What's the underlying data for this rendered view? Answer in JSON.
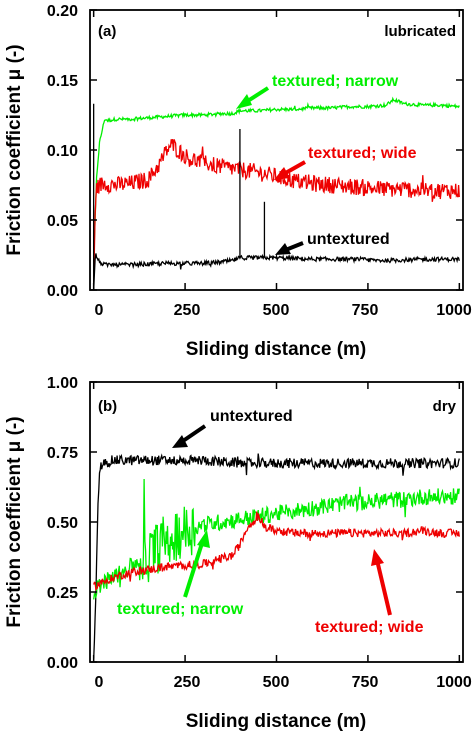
{
  "chart_data": [
    {
      "type": "line",
      "panel_label": "(a)",
      "condition": "lubricated",
      "xlabel": "Sliding distance (m)",
      "ylabel": "Friction coefficient μ (-)",
      "xlim": [
        -10,
        1010
      ],
      "ylim": [
        0,
        0.2
      ],
      "xticks": [
        "0",
        "250",
        "500",
        "750",
        "1000"
      ],
      "xtick_values": [
        0,
        250,
        500,
        750,
        1000
      ],
      "yticks": [
        "0.00",
        "0.05",
        "0.10",
        "0.15",
        "0.20"
      ],
      "ytick_values": [
        0,
        0.05,
        0.1,
        0.15,
        0.2
      ],
      "grid": false,
      "series": [
        {
          "name": "textured; narrow",
          "color": "#00ee00",
          "x": [
            0,
            8,
            16,
            24,
            30,
            40,
            60,
            100,
            150,
            200,
            250,
            300,
            350,
            380,
            400,
            450,
            500,
            550,
            600,
            650,
            700,
            750,
            800,
            820,
            850,
            900,
            950,
            1000
          ],
          "y": [
            0.02,
            0.08,
            0.105,
            0.115,
            0.122,
            0.121,
            0.122,
            0.122,
            0.123,
            0.124,
            0.125,
            0.125,
            0.126,
            0.126,
            0.128,
            0.128,
            0.129,
            0.129,
            0.13,
            0.13,
            0.131,
            0.131,
            0.132,
            0.136,
            0.133,
            0.132,
            0.132,
            0.131
          ],
          "noise": 0.0012
        },
        {
          "name": "textured; wide",
          "color": "#ee0000",
          "x": [
            0,
            5,
            15,
            30,
            60,
            100,
            150,
            180,
            200,
            215,
            230,
            260,
            300,
            350,
            400,
            450,
            500,
            550,
            600,
            650,
            700,
            750,
            800,
            850,
            900,
            950,
            1000
          ],
          "y": [
            0.0,
            0.07,
            0.075,
            0.076,
            0.075,
            0.076,
            0.079,
            0.09,
            0.1,
            0.104,
            0.1,
            0.094,
            0.091,
            0.088,
            0.086,
            0.084,
            0.081,
            0.078,
            0.076,
            0.075,
            0.074,
            0.073,
            0.072,
            0.072,
            0.071,
            0.071,
            0.071
          ],
          "noise": 0.006
        },
        {
          "name": "untextured",
          "color": "#000000",
          "x": [
            0,
            5,
            15,
            30,
            100,
            200,
            300,
            350,
            380,
            400,
            420,
            450,
            500,
            600,
            700,
            800,
            900,
            1000
          ],
          "y": [
            0.0,
            0.026,
            0.02,
            0.018,
            0.018,
            0.019,
            0.019,
            0.02,
            0.021,
            0.023,
            0.023,
            0.023,
            0.023,
            0.022,
            0.022,
            0.021,
            0.022,
            0.022
          ],
          "noise": 0.0015,
          "spikes": [
            [
              400,
              0.115
            ],
            [
              467,
              0.063
            ],
            [
              0,
              0.133
            ]
          ]
        }
      ],
      "annotations": [
        {
          "text": "textured; narrow",
          "color": "#00ee00",
          "target": [
            785,
            0.137
          ]
        },
        {
          "text": "textured; wide",
          "color": "#ee0000",
          "target": [
            680,
            0.077
          ]
        },
        {
          "text": "untextured",
          "color": "#000000",
          "target": [
            490,
            0.024
          ]
        }
      ]
    },
    {
      "type": "line",
      "panel_label": "(b)",
      "condition": "dry",
      "xlabel": "Sliding distance (m)",
      "ylabel": "Friction coefficient μ (-)",
      "xlim": [
        -10,
        1010
      ],
      "ylim": [
        0,
        1.0
      ],
      "xticks": [
        "0",
        "250",
        "500",
        "750",
        "1000"
      ],
      "xtick_values": [
        0,
        250,
        500,
        750,
        1000
      ],
      "yticks": [
        "0.00",
        "0.25",
        "0.50",
        "0.75",
        "1.00"
      ],
      "ytick_values": [
        0,
        0.25,
        0.5,
        0.75,
        1.0
      ],
      "grid": false,
      "series": [
        {
          "name": "untextured",
          "color": "#000000",
          "x": [
            0,
            4,
            8,
            12,
            16,
            20,
            30,
            50,
            100,
            200,
            300,
            400,
            500,
            600,
            700,
            800,
            900,
            1000
          ],
          "y": [
            0.0,
            0.15,
            0.35,
            0.55,
            0.66,
            0.7,
            0.71,
            0.72,
            0.72,
            0.72,
            0.72,
            0.71,
            0.71,
            0.71,
            0.71,
            0.71,
            0.71,
            0.71
          ],
          "noise": 0.018
        },
        {
          "name": "textured; narrow",
          "color": "#00ee00",
          "x": [
            0,
            10,
            50,
            100,
            150,
            200,
            250,
            300,
            350,
            400,
            450,
            500,
            550,
            600,
            650,
            700,
            750,
            800,
            850,
            900,
            950,
            1000
          ],
          "y": [
            0.24,
            0.27,
            0.3,
            0.34,
            0.38,
            0.44,
            0.47,
            0.49,
            0.5,
            0.51,
            0.52,
            0.53,
            0.54,
            0.55,
            0.56,
            0.57,
            0.57,
            0.58,
            0.58,
            0.59,
            0.59,
            0.59
          ],
          "noise": 0.03
        },
        {
          "name": "textured; wide",
          "color": "#ee0000",
          "x": [
            0,
            50,
            100,
            200,
            300,
            350,
            380,
            400,
            420,
            450,
            470,
            500,
            550,
            600,
            650,
            700,
            750,
            800,
            850,
            900,
            950,
            1000
          ],
          "y": [
            0.27,
            0.3,
            0.32,
            0.34,
            0.35,
            0.37,
            0.38,
            0.42,
            0.48,
            0.52,
            0.48,
            0.47,
            0.46,
            0.46,
            0.46,
            0.46,
            0.46,
            0.46,
            0.46,
            0.47,
            0.46,
            0.46
          ],
          "noise": 0.015
        }
      ],
      "annotations": [
        {
          "text": "untextured",
          "color": "#000000",
          "target": [
            200,
            0.75
          ]
        },
        {
          "text": "textured; narrow",
          "color": "#00ee00",
          "target": [
            230,
            0.49
          ]
        },
        {
          "text": "textured; wide",
          "color": "#ee0000",
          "target": [
            775,
            0.46
          ]
        }
      ]
    }
  ]
}
